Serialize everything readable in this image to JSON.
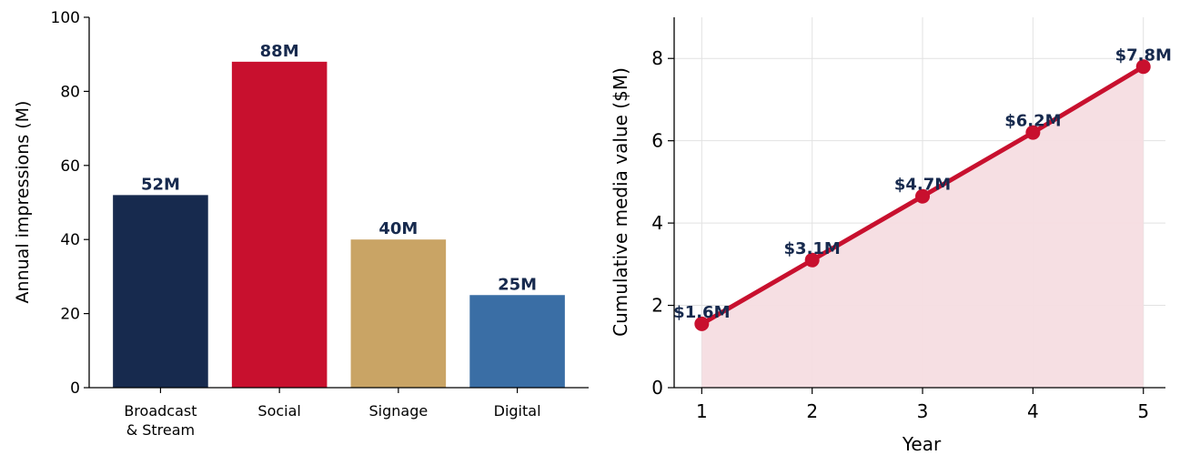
{
  "chart_data": [
    {
      "type": "bar",
      "title": "",
      "xlabel": "",
      "ylabel": "Annual impressions (M)",
      "categories": [
        [
          "Broadcast",
          "& Stream"
        ],
        [
          "Social"
        ],
        [
          "Signage"
        ],
        [
          "Digital"
        ]
      ],
      "values": [
        52,
        88,
        40,
        25
      ],
      "value_labels": [
        "52M",
        "88M",
        "40M",
        "25M"
      ],
      "bar_colors": [
        "#172a4e",
        "#c8102e",
        "#c9a465",
        "#3a6ea5"
      ],
      "ylim": [
        0,
        100
      ],
      "yticks": [
        0,
        20,
        40,
        60,
        80,
        100
      ],
      "grid": false,
      "label_color": "#172a4e"
    },
    {
      "type": "area",
      "title": "",
      "xlabel": "Year",
      "ylabel": "Cumulative media value ($M)",
      "x": [
        1,
        2,
        3,
        4,
        5
      ],
      "y": [
        1.55,
        3.1,
        4.65,
        6.2,
        7.8
      ],
      "point_labels": [
        "$1.6M",
        "$3.1M",
        "$4.7M",
        "$6.2M",
        "$7.8M"
      ],
      "xticks": [
        1,
        2,
        3,
        4,
        5
      ],
      "yticks": [
        0,
        2,
        4,
        6,
        8
      ],
      "xlim": [
        0.75,
        5.2
      ],
      "ylim": [
        0,
        9
      ],
      "grid": true,
      "line_color": "#c8102e",
      "fill_color": "#f6dde1",
      "label_color": "#172a4e"
    }
  ]
}
